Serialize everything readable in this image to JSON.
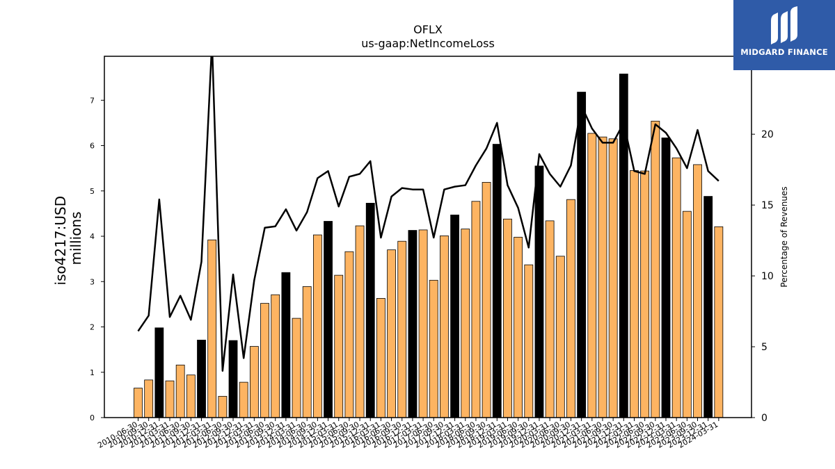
{
  "logo": {
    "text": "MIDGARD FINANCE",
    "icon": "midgard-logo-icon",
    "bg_color": "#2f5ba8"
  },
  "chart_data": {
    "type": "bar",
    "title": "OFLX",
    "subtitle": "us-gaap:NetIncomeLoss",
    "ylabel": "iso4217:USD",
    "ylabel_unit": "millions",
    "y2label": "Percentage of Revenues",
    "ylim": [
      0,
      7.97
    ],
    "y2lim": [
      0,
      25.5
    ],
    "y_ticks": [
      0,
      1,
      2,
      3,
      4,
      5,
      6,
      7
    ],
    "y2_ticks": [
      0,
      5,
      10,
      15,
      20,
      25
    ],
    "colors": {
      "quarter": "#fdb462",
      "annual": "#000000",
      "line": "#000000"
    },
    "categories": [
      "2010-06-30",
      "2010-09-30",
      "2010-12-31",
      "2011-03-31",
      "2011-06-30",
      "2011-09-30",
      "2011-12-31",
      "2012-03-31",
      "2012-06-30",
      "2012-09-30",
      "2012-12-31",
      "2013-03-31",
      "2013-06-30",
      "2013-09-30",
      "2013-12-31",
      "2014-03-31",
      "2014-06-30",
      "2014-09-30",
      "2014-12-31",
      "2015-03-31",
      "2015-06-30",
      "2015-09-30",
      "2015-12-31",
      "2016-03-31",
      "2016-06-30",
      "2016-09-30",
      "2016-12-31",
      "2017-03-31",
      "2017-06-30",
      "2017-09-30",
      "2017-12-31",
      "2018-03-31",
      "2018-06-30",
      "2018-09-30",
      "2018-12-31",
      "2019-03-31",
      "2019-06-30",
      "2019-09-30",
      "2019-12-31",
      "2020-03-31",
      "2020-06-30",
      "2020-09-30",
      "2020-12-31",
      "2021-03-31",
      "2021-06-30",
      "2021-09-30",
      "2021-12-31",
      "2022-03-31",
      "2022-06-30",
      "2022-09-30",
      "2022-12-31",
      "2023-03-31",
      "2023-06-30",
      "2023-09-30",
      "2023-12-31",
      "2024-03-31"
    ],
    "x_tick_labels": [
      "2010-06-30",
      "2010-09-30",
      "2010-12-31",
      "2011-03-31",
      "2011-06-30",
      "2011-09-30",
      "2011-12-31",
      "2012-03-31",
      "2012-06-30",
      "2012-09-30",
      "2012-12-31",
      "2013-03-31",
      "2013-06-30",
      "2013-09-30",
      "2013-12-31",
      "2014-03-31",
      "2014-06-30",
      "2014-09-30",
      "2014-12-31",
      "2015-03-31",
      "2015-06-30",
      "2015-09-30",
      "2015-12-31",
      "2016-03-31",
      "2016-06-30",
      "2016-09-30",
      "2016-12-31",
      "2017-03-31",
      "2017-06-30",
      "2017-09-30",
      "2017-12-31",
      "2018-03-31",
      "2018-06-30",
      "2018-09-30",
      "2018-12-31",
      "2019-03-31",
      "2019-06-30",
      "2019-09-30",
      "2019-12-31",
      "2020-03-31",
      "2020-06-30",
      "2020-09-30",
      "2020-12-31",
      "2021-03-31",
      "2021-06-30",
      "2021-09-30",
      "2021-12-31",
      "2022-03-31",
      "2022-06-30",
      "2022-09-30",
      "2022-12-31",
      "2023-03-31",
      "2023-06-30",
      "2023-09-30",
      "2023-12-31",
      "2024-03-31"
    ],
    "values": [
      0.65,
      0.83,
      1.98,
      0.81,
      1.16,
      0.94,
      1.71,
      3.92,
      0.47,
      1.7,
      0.78,
      1.57,
      2.52,
      2.71,
      3.2,
      2.19,
      2.89,
      4.03,
      4.33,
      3.14,
      3.66,
      4.23,
      4.73,
      2.63,
      3.7,
      3.89,
      4.13,
      4.14,
      3.03,
      4.01,
      4.47,
      4.16,
      4.77,
      5.19,
      6.03,
      4.38,
      3.98,
      3.37,
      5.55,
      4.34,
      3.56,
      4.81,
      7.18,
      6.27,
      6.19,
      6.15,
      7.58,
      5.45,
      5.44,
      6.54,
      6.17,
      5.73,
      4.55,
      5.58,
      4.88,
      4.21
    ],
    "annual_flags": [
      false,
      false,
      true,
      false,
      false,
      false,
      true,
      false,
      false,
      true,
      false,
      false,
      false,
      false,
      true,
      false,
      false,
      false,
      true,
      false,
      false,
      false,
      true,
      false,
      false,
      false,
      true,
      false,
      false,
      false,
      true,
      false,
      false,
      false,
      true,
      false,
      false,
      false,
      true,
      false,
      false,
      false,
      true,
      false,
      false,
      false,
      true,
      false,
      false,
      false,
      true,
      false,
      false,
      false,
      true,
      false
    ],
    "pct_values": [
      6.1,
      7.2,
      15.4,
      7.1,
      8.6,
      6.9,
      11.0,
      26.5,
      3.3,
      10.1,
      4.2,
      9.7,
      13.4,
      13.5,
      14.7,
      13.2,
      14.5,
      16.9,
      17.4,
      14.9,
      17.0,
      17.2,
      18.1,
      12.7,
      15.6,
      16.2,
      16.1,
      16.1,
      12.7,
      16.1,
      16.3,
      16.4,
      17.8,
      19.0,
      20.8,
      16.4,
      14.8,
      12.0,
      18.6,
      17.2,
      16.3,
      17.8,
      22.0,
      20.4,
      19.4,
      19.4,
      20.8,
      17.4,
      17.2,
      20.7,
      20.1,
      19.0,
      17.6,
      20.3,
      17.4,
      16.7
    ]
  }
}
